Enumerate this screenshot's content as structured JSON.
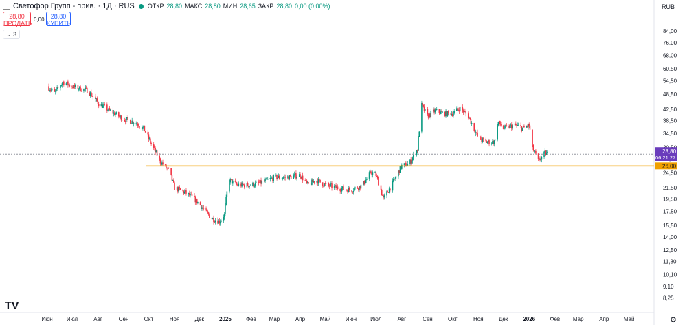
{
  "header": {
    "title": "Светофор Групп - прив. · 1Д · RUS",
    "open_label": "ОТКР",
    "open": "28,80",
    "high_label": "МАКС",
    "high": "28,80",
    "low_label": "МИН",
    "low": "28,65",
    "close_label": "ЗАКР",
    "close": "28,80",
    "change": "0,00 (0,00%)"
  },
  "trade": {
    "sell_price": "28,80",
    "sell_label": "ПРОДАТЬ",
    "spread": "0,00",
    "buy_price": "28,80",
    "buy_label": "КУПИТЬ"
  },
  "indicators_toggle": "3",
  "currency": "RUB",
  "price_badge": {
    "price": "28,80",
    "countdown": "06:21:27"
  },
  "level_badge": "26,00",
  "colors": {
    "up": "#089981",
    "down": "#f23645",
    "level": "#f0a000",
    "badge": "#6a3cbc",
    "text": "#131722"
  },
  "chart_data": {
    "type": "candlestick",
    "scale": "log",
    "ylim": [
      7.6,
      92
    ],
    "price_ticks": [
      "84,00",
      "76,00",
      "68,00",
      "60,50",
      "54,50",
      "48,50",
      "42,50",
      "38,50",
      "34,50",
      "30,50",
      "27,50",
      "24,50",
      "21,50",
      "19,50",
      "17,50",
      "15,50",
      "14,00",
      "12,50",
      "11,30",
      "10,10",
      "9,10",
      "8,25"
    ],
    "x_ticks": [
      "Июн",
      "Июл",
      "Авг",
      "Сен",
      "Окт",
      "Ноя",
      "Дек",
      "2025",
      "Фев",
      "Мар",
      "Апр",
      "Май",
      "Июн",
      "Июл",
      "Авг",
      "Сен",
      "Окт",
      "Ноя",
      "Дек",
      "2026",
      "Фев",
      "Мар",
      "Апр",
      "Май"
    ],
    "horizontal_level": 26.0,
    "current_price": 28.8,
    "close_path": [
      [
        "2024-06-01",
        52
      ],
      [
        "2024-06-10",
        49
      ],
      [
        "2024-06-20",
        54
      ],
      [
        "2024-07-01",
        52
      ],
      [
        "2024-07-10",
        51
      ],
      [
        "2024-07-20",
        50
      ],
      [
        "2024-08-01",
        45
      ],
      [
        "2024-08-15",
        42
      ],
      [
        "2024-09-01",
        39
      ],
      [
        "2024-09-15",
        38
      ],
      [
        "2024-09-25",
        36
      ],
      [
        "2024-10-05",
        31
      ],
      [
        "2024-10-15",
        27
      ],
      [
        "2024-10-25",
        25
      ],
      [
        "2024-11-01",
        21.5
      ],
      [
        "2024-11-15",
        20.5
      ],
      [
        "2024-11-25",
        19.5
      ],
      [
        "2024-12-05",
        18
      ],
      [
        "2024-12-15",
        16.5
      ],
      [
        "2024-12-25",
        16
      ],
      [
        "2024-12-31",
        17
      ],
      [
        "2025-01-05",
        23
      ],
      [
        "2025-01-15",
        22
      ],
      [
        "2025-02-01",
        22
      ],
      [
        "2025-02-15",
        22.5
      ],
      [
        "2025-03-01",
        23.5
      ],
      [
        "2025-03-15",
        23.5
      ],
      [
        "2025-04-01",
        24
      ],
      [
        "2025-04-10",
        22
      ],
      [
        "2025-04-20",
        23
      ],
      [
        "2025-05-01",
        22
      ],
      [
        "2025-05-15",
        21.5
      ],
      [
        "2025-06-01",
        21
      ],
      [
        "2025-06-15",
        22
      ],
      [
        "2025-06-25",
        24.5
      ],
      [
        "2025-07-01",
        24
      ],
      [
        "2025-07-10",
        19.5
      ],
      [
        "2025-07-20",
        22
      ],
      [
        "2025-08-01",
        26
      ],
      [
        "2025-08-10",
        26.5
      ],
      [
        "2025-08-20",
        30
      ],
      [
        "2025-08-25",
        44
      ],
      [
        "2025-09-01",
        40
      ],
      [
        "2025-09-10",
        42
      ],
      [
        "2025-09-20",
        41
      ],
      [
        "2025-10-01",
        41
      ],
      [
        "2025-10-10",
        43
      ],
      [
        "2025-10-20",
        40
      ],
      [
        "2025-10-25",
        37
      ],
      [
        "2025-11-01",
        33
      ],
      [
        "2025-11-10",
        32
      ],
      [
        "2025-11-20",
        32
      ],
      [
        "2025-11-25",
        38
      ],
      [
        "2025-12-01",
        36
      ],
      [
        "2025-12-15",
        37
      ],
      [
        "2025-12-25",
        36
      ],
      [
        "2026-01-01",
        37
      ],
      [
        "2026-01-05",
        30.5
      ],
      [
        "2026-01-12",
        27
      ],
      [
        "2026-01-20",
        29
      ],
      [
        "2026-01-25",
        28.8
      ]
    ]
  }
}
